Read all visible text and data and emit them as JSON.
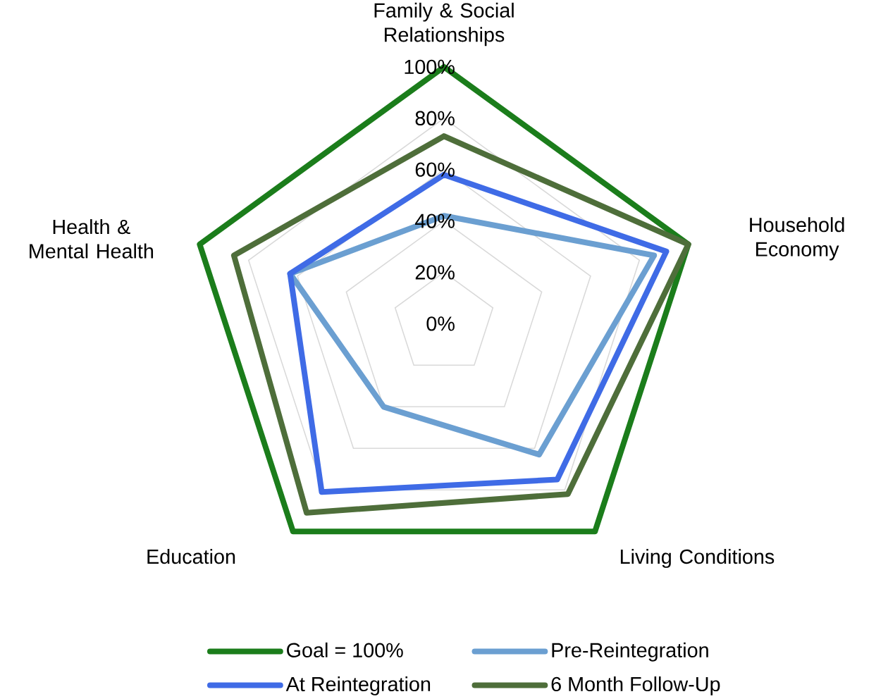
{
  "chart_data": {
    "type": "radar",
    "categories": [
      "Family & Social Relationships",
      "Household Economy",
      "Living Conditions",
      "Education",
      "Health & Mental Health"
    ],
    "ylim": [
      0,
      100
    ],
    "yticks": [
      {
        "value": 0,
        "label": "0%"
      },
      {
        "value": 20,
        "label": "20%"
      },
      {
        "value": 40,
        "label": "40%"
      },
      {
        "value": 60,
        "label": "60%"
      },
      {
        "value": 80,
        "label": "80%"
      },
      {
        "value": 100,
        "label": "100%"
      }
    ],
    "grid": true,
    "legend": "bottom",
    "series": [
      {
        "name": "Goal = 100%",
        "color": "#1b7d1b",
        "values": [
          100,
          100,
          100,
          100,
          100
        ]
      },
      {
        "name": "Pre-Reintegration",
        "color": "#6b9fd1",
        "values": [
          42,
          86,
          63,
          40,
          63
        ]
      },
      {
        "name": "At Reintegration",
        "color": "#3f6be6",
        "values": [
          58,
          91,
          75,
          81,
          63
        ]
      },
      {
        "name": "6 Month Follow-Up",
        "color": "#4e6e3a",
        "values": [
          73,
          100,
          82,
          91,
          86
        ]
      }
    ]
  }
}
